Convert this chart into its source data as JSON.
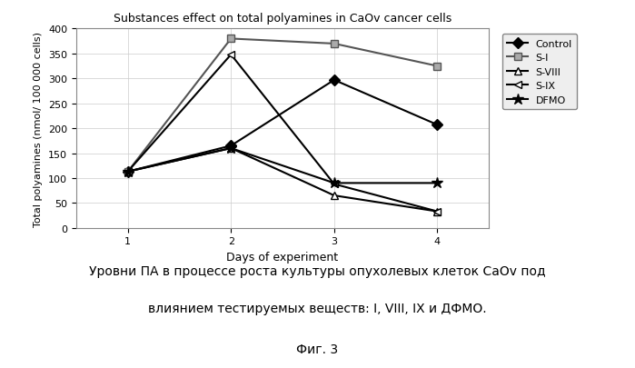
{
  "title": "Substances effect on total polyamines in CaOv cancer cells",
  "xlabel": "Days of experiment",
  "ylabel": "Total polyamines (nmol/ 100 000 cells)",
  "xlim": [
    0.5,
    4.5
  ],
  "ylim": [
    0,
    400
  ],
  "yticks": [
    0,
    50,
    100,
    150,
    200,
    250,
    300,
    350,
    400
  ],
  "xticks": [
    1,
    2,
    3,
    4
  ],
  "series": {
    "Control": {
      "x": [
        1,
        2,
        3,
        4
      ],
      "y": [
        113,
        165,
        297,
        207
      ],
      "color": "#000000",
      "marker": "D",
      "markersize": 6,
      "linewidth": 1.5,
      "markerfacecolor": "#000000"
    },
    "S-I": {
      "x": [
        1,
        2,
        3,
        4
      ],
      "y": [
        113,
        380,
        370,
        325
      ],
      "color": "#555555",
      "marker": "s",
      "markersize": 6,
      "linewidth": 1.5,
      "markerfacecolor": "#aaaaaa"
    },
    "S-VIII": {
      "x": [
        1,
        2,
        3,
        4
      ],
      "y": [
        113,
        160,
        65,
        33
      ],
      "color": "#000000",
      "marker": "^",
      "markersize": 6,
      "linewidth": 1.5,
      "markerfacecolor": "white"
    },
    "S-IX": {
      "x": [
        1,
        2,
        3,
        4
      ],
      "y": [
        113,
        348,
        88,
        33
      ],
      "color": "#000000",
      "marker": "<",
      "markersize": 6,
      "linewidth": 1.5,
      "markerfacecolor": "white"
    },
    "DFMO": {
      "x": [
        1,
        2,
        3,
        4
      ],
      "y": [
        113,
        160,
        90,
        90
      ],
      "color": "#000000",
      "marker": "*",
      "markersize": 9,
      "linewidth": 1.5,
      "markerfacecolor": "#000000"
    }
  },
  "caption_line1": "Уровни ПА в процессе роста культуры опухолевых клеток CaOv под",
  "caption_line2": "влиянием тестируемых веществ: I, VIII, IX и ДФМО.",
  "caption_line3": "Фиг. 3",
  "background_color": "#ffffff",
  "grid_color": "#cccccc"
}
